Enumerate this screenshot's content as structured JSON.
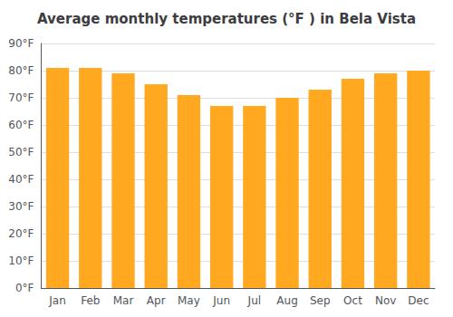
{
  "chart_data": {
    "type": "bar",
    "title": "Average monthly temperatures (°F ) in Bela Vista",
    "categories": [
      "Jan",
      "Feb",
      "Mar",
      "Apr",
      "May",
      "Jun",
      "Jul",
      "Aug",
      "Sep",
      "Oct",
      "Nov",
      "Dec"
    ],
    "values": [
      81,
      81,
      79,
      75,
      71,
      67,
      67,
      70,
      73,
      77,
      79,
      80
    ],
    "color": "#FFA820",
    "ylim": [
      0,
      90
    ],
    "yticks": [
      {
        "value": 0,
        "label": "0°F"
      },
      {
        "value": 10,
        "label": "10°F"
      },
      {
        "value": 20,
        "label": "20°F"
      },
      {
        "value": 30,
        "label": "30°F"
      },
      {
        "value": 40,
        "label": "40°F"
      },
      {
        "value": 50,
        "label": "50°F"
      },
      {
        "value": 60,
        "label": "60°F"
      },
      {
        "value": 70,
        "label": "70°F"
      },
      {
        "value": 80,
        "label": "80°F"
      },
      {
        "value": 90,
        "label": "90°F"
      }
    ],
    "grid": true
  }
}
